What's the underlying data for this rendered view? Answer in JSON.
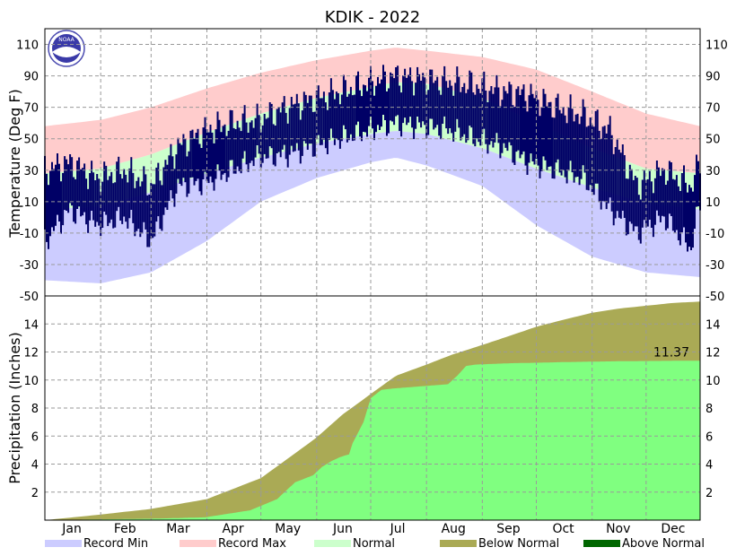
{
  "title": "KDIK - 2022",
  "colors": {
    "record_min": "#ccccff",
    "record_max": "#ffcccc",
    "normal": "#ccffcc",
    "observed_temp": "#000066",
    "below_normal": "#aaaa55",
    "above_normal": "#006600",
    "observed_precip": "#80ff80"
  },
  "logo": {
    "text": "NOAA"
  },
  "chart_data": [
    {
      "type": "area",
      "panel": "temperature",
      "ylabel": "Temperature (Deg F)",
      "ylim": [
        -50,
        120
      ],
      "yticks": [
        110,
        90,
        70,
        50,
        30,
        10,
        -10,
        -30,
        -50
      ],
      "x_unit": "day_of_year",
      "xlim": [
        1,
        365
      ],
      "grid": true,
      "series": [
        {
          "name": "Record Max",
          "x": [
            1,
            32,
            60,
            91,
            121,
            152,
            182,
            196,
            213,
            244,
            274,
            305,
            335,
            365
          ],
          "values": [
            58,
            62,
            70,
            82,
            92,
            100,
            106,
            108,
            106,
            102,
            94,
            80,
            66,
            58
          ]
        },
        {
          "name": "Normal",
          "upper": [
            28,
            31,
            40,
            54,
            66,
            76,
            83,
            86,
            85,
            76,
            60,
            44,
            31,
            28
          ],
          "lower": [
            5,
            7,
            16,
            28,
            38,
            47,
            53,
            55,
            53,
            44,
            31,
            19,
            9,
            5
          ],
          "x": [
            1,
            32,
            60,
            91,
            121,
            152,
            182,
            196,
            213,
            244,
            274,
            305,
            335,
            365
          ]
        },
        {
          "name": "Record Min",
          "x": [
            1,
            32,
            60,
            91,
            121,
            152,
            182,
            196,
            213,
            244,
            274,
            305,
            335,
            365
          ],
          "values": [
            -40,
            -42,
            -35,
            -15,
            10,
            25,
            35,
            38,
            33,
            20,
            -5,
            -25,
            -35,
            -38
          ]
        },
        {
          "name": "Observed High",
          "x": [
            1,
            15,
            30,
            45,
            60,
            75,
            90,
            105,
            120,
            135,
            150,
            165,
            180,
            195,
            210,
            225,
            240,
            255,
            270,
            285,
            300,
            315,
            330,
            345,
            360,
            365
          ],
          "values": [
            30,
            35,
            25,
            30,
            20,
            45,
            55,
            60,
            62,
            70,
            75,
            80,
            85,
            90,
            88,
            86,
            84,
            80,
            78,
            70,
            65,
            55,
            20,
            30,
            20,
            35
          ]
        },
        {
          "name": "Observed Low",
          "x": [
            1,
            15,
            30,
            45,
            60,
            75,
            90,
            105,
            120,
            135,
            150,
            165,
            180,
            195,
            210,
            225,
            240,
            255,
            270,
            285,
            300,
            315,
            330,
            345,
            360,
            365
          ],
          "values": [
            -15,
            5,
            -5,
            0,
            -15,
            20,
            22,
            30,
            38,
            40,
            45,
            50,
            55,
            60,
            58,
            56,
            50,
            45,
            35,
            30,
            25,
            5,
            -10,
            0,
            -20,
            10
          ]
        }
      ]
    },
    {
      "type": "area",
      "panel": "precipitation",
      "ylabel": "Precipitation (Inches)",
      "ylim": [
        0,
        16
      ],
      "yticks": [
        14,
        12,
        10,
        8,
        6,
        4,
        2
      ],
      "x_unit": "day_of_year",
      "xlim": [
        1,
        365
      ],
      "categories": [
        "Jan",
        "Feb",
        "Mar",
        "Apr",
        "May",
        "Jun",
        "Jul",
        "Aug",
        "Sep",
        "Oct",
        "Nov",
        "Dec"
      ],
      "grid": true,
      "annotation": "11.37",
      "series": [
        {
          "name": "Normal cumulative",
          "x": [
            1,
            32,
            60,
            91,
            121,
            135,
            152,
            166,
            182,
            196,
            213,
            227,
            244,
            258,
            274,
            289,
            305,
            320,
            335,
            350,
            365
          ],
          "values": [
            0,
            0.4,
            0.8,
            1.5,
            3.0,
            4.3,
            5.9,
            7.5,
            9.0,
            10.3,
            11.1,
            11.8,
            12.5,
            13.1,
            13.8,
            14.3,
            14.8,
            15.1,
            15.3,
            15.5,
            15.6
          ]
        },
        {
          "name": "Observed cumulative",
          "x": [
            1,
            30,
            60,
            90,
            115,
            130,
            140,
            150,
            155,
            160,
            165,
            170,
            172,
            178,
            182,
            185,
            188,
            195,
            205,
            215,
            225,
            230,
            235,
            240,
            250,
            260,
            270,
            280,
            290,
            300,
            310,
            320,
            330,
            340,
            350,
            365
          ],
          "values": [
            0,
            0.05,
            0.1,
            0.2,
            0.7,
            1.5,
            2.7,
            3.2,
            3.8,
            4.2,
            4.5,
            4.7,
            5.5,
            7.0,
            8.7,
            9.0,
            9.3,
            9.4,
            9.5,
            9.6,
            9.7,
            10.3,
            11.0,
            11.1,
            11.15,
            11.2,
            11.22,
            11.25,
            11.28,
            11.3,
            11.32,
            11.34,
            11.35,
            11.36,
            11.37,
            11.37
          ]
        }
      ]
    }
  ],
  "legend": [
    {
      "label": "Record Min",
      "color_key": "record_min"
    },
    {
      "label": "Record Max",
      "color_key": "record_max"
    },
    {
      "label": "Normal",
      "color_key": "normal"
    },
    {
      "label": "Below Normal",
      "color_key": "below_normal"
    },
    {
      "label": "Above Normal",
      "color_key": "above_normal"
    }
  ]
}
